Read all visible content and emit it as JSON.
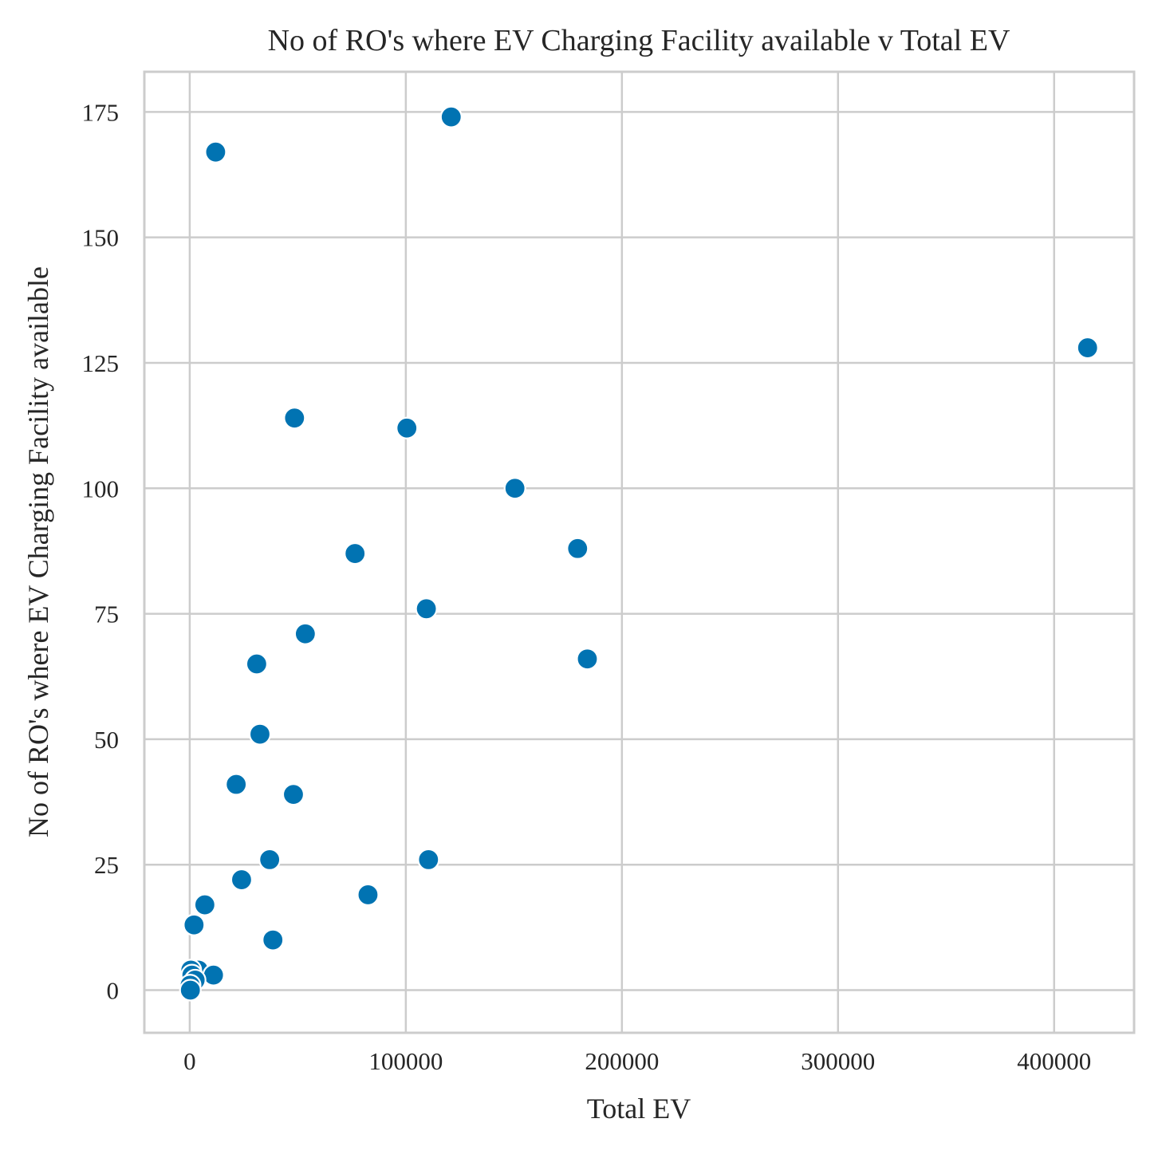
{
  "chart_data": {
    "type": "scatter",
    "title": "No of RO's where EV Charging Facility available v Total EV",
    "xlabel": "Total EV",
    "ylabel": "No of RO's where EV Charging Facility available",
    "xlim": [
      -21000,
      437000
    ],
    "ylim": [
      -8.5,
      183
    ],
    "x_ticks": [
      0,
      100000,
      200000,
      300000,
      400000
    ],
    "x_tick_labels": [
      "0",
      "100000",
      "200000",
      "300000",
      "400000"
    ],
    "y_ticks": [
      0,
      25,
      50,
      75,
      100,
      125,
      150,
      175
    ],
    "y_tick_labels": [
      "0",
      "25",
      "50",
      "75",
      "100",
      "125",
      "150",
      "175"
    ],
    "grid": true,
    "marker_color": "#0173b2",
    "points": [
      {
        "x": 121000,
        "y": 174
      },
      {
        "x": 12000,
        "y": 167
      },
      {
        "x": 415500,
        "y": 128
      },
      {
        "x": 48500,
        "y": 114
      },
      {
        "x": 100500,
        "y": 112
      },
      {
        "x": 150500,
        "y": 100
      },
      {
        "x": 76500,
        "y": 87
      },
      {
        "x": 179500,
        "y": 88
      },
      {
        "x": 109500,
        "y": 76
      },
      {
        "x": 53500,
        "y": 71
      },
      {
        "x": 31000,
        "y": 65
      },
      {
        "x": 184000,
        "y": 66
      },
      {
        "x": 32500,
        "y": 51
      },
      {
        "x": 21500,
        "y": 41
      },
      {
        "x": 48000,
        "y": 39
      },
      {
        "x": 37000,
        "y": 26
      },
      {
        "x": 110500,
        "y": 26
      },
      {
        "x": 24000,
        "y": 22
      },
      {
        "x": 82500,
        "y": 19
      },
      {
        "x": 7000,
        "y": 17
      },
      {
        "x": 2000,
        "y": 13
      },
      {
        "x": 38500,
        "y": 10
      },
      {
        "x": 4000,
        "y": 4
      },
      {
        "x": 500,
        "y": 4
      },
      {
        "x": 11000,
        "y": 3
      },
      {
        "x": 1000,
        "y": 3
      },
      {
        "x": 2500,
        "y": 2
      },
      {
        "x": 200,
        "y": 1
      },
      {
        "x": 300,
        "y": 0
      }
    ]
  }
}
